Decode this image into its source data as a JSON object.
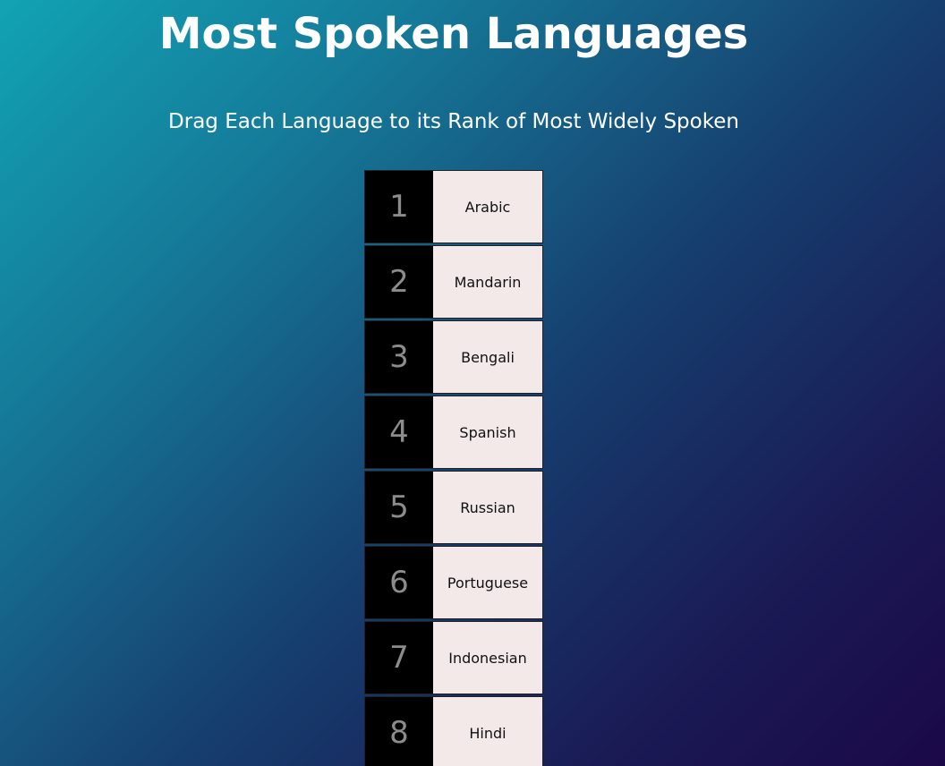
{
  "header": {
    "title": "Most Spoken Languages",
    "subtitle": "Drag Each Language to its Rank of Most Widely Spoken"
  },
  "ranking": [
    {
      "rank": "1",
      "language": "Arabic"
    },
    {
      "rank": "2",
      "language": "Mandarin"
    },
    {
      "rank": "3",
      "language": "Bengali"
    },
    {
      "rank": "4",
      "language": "Spanish"
    },
    {
      "rank": "5",
      "language": "Russian"
    },
    {
      "rank": "6",
      "language": "Portuguese"
    },
    {
      "rank": "7",
      "language": "Indonesian"
    },
    {
      "rank": "8",
      "language": "Hindi"
    }
  ],
  "colors": {
    "rank_cell_bg": "#000000",
    "rank_number_text": "#8c8c8c",
    "language_cell_bg": "#f3e9e9"
  }
}
